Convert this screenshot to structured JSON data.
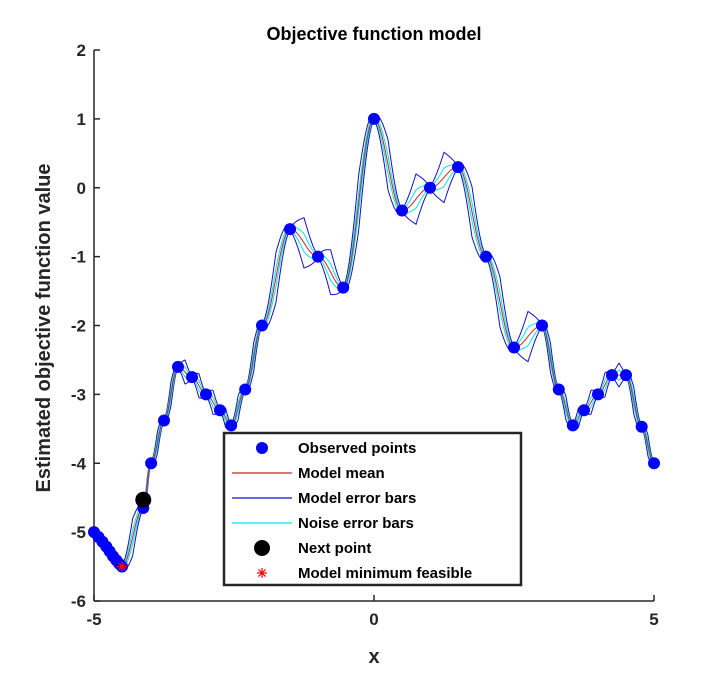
{
  "chart_data": {
    "type": "line",
    "title": "Objective function model",
    "xlabel": "x",
    "ylabel": "Estimated objective function value",
    "xlim": [
      -5,
      5
    ],
    "ylim": [
      -6,
      2
    ],
    "xticks": [
      -5,
      0,
      5
    ],
    "yticks": [
      2,
      1,
      0,
      -1,
      -2,
      -3,
      -4,
      -5,
      -6
    ],
    "grid": false,
    "legend_placement": "bottom-center",
    "colors": {
      "observed": "#0000ff",
      "model_mean": "#cc2222",
      "model_error": "#1010c0",
      "noise_error": "#00e5ee",
      "next_point": "#000000",
      "minimum": "#ff0000"
    },
    "legend": [
      {
        "key": "observed",
        "label": "Observed points"
      },
      {
        "key": "model_mean",
        "label": "Model mean"
      },
      {
        "key": "model_error",
        "label": "Model error bars"
      },
      {
        "key": "noise_error",
        "label": "Noise error bars"
      },
      {
        "key": "next_point",
        "label": "Next point"
      },
      {
        "key": "minimum",
        "label": "Model minimum feasible"
      }
    ],
    "observed_points": [
      [
        -5.0,
        -5.0
      ],
      [
        -4.92,
        -5.07
      ],
      [
        -4.85,
        -5.14
      ],
      [
        -4.78,
        -5.21
      ],
      [
        -4.72,
        -5.28
      ],
      [
        -4.66,
        -5.35
      ],
      [
        -4.6,
        -5.41
      ],
      [
        -4.55,
        -5.46
      ],
      [
        -4.5,
        -5.5
      ],
      [
        -4.12,
        -4.65
      ],
      [
        -3.98,
        -4.0
      ],
      [
        -3.75,
        -3.38
      ],
      [
        -3.5,
        -2.6
      ],
      [
        -3.25,
        -2.75
      ],
      [
        -3.0,
        -3.0
      ],
      [
        -2.75,
        -3.23
      ],
      [
        -2.55,
        -3.45
      ],
      [
        -2.3,
        -2.93
      ],
      [
        -2.0,
        -2.0
      ],
      [
        -1.5,
        -0.6
      ],
      [
        -1.0,
        -1.0
      ],
      [
        -0.55,
        -1.45
      ],
      [
        0.0,
        1.0
      ],
      [
        0.5,
        -0.33
      ],
      [
        1.0,
        0.0
      ],
      [
        1.5,
        0.3
      ],
      [
        2.0,
        -1.0
      ],
      [
        2.5,
        -2.32
      ],
      [
        3.0,
        -2.0
      ],
      [
        3.3,
        -2.93
      ],
      [
        3.55,
        -3.45
      ],
      [
        3.75,
        -3.23
      ],
      [
        4.0,
        -3.0
      ],
      [
        4.25,
        -2.72
      ],
      [
        4.5,
        -2.72
      ],
      [
        4.78,
        -3.47
      ],
      [
        5.0,
        -4.0
      ]
    ],
    "next_point": [
      -4.12,
      -4.53
    ],
    "model_minimum": [
      -4.5,
      -5.5
    ]
  }
}
